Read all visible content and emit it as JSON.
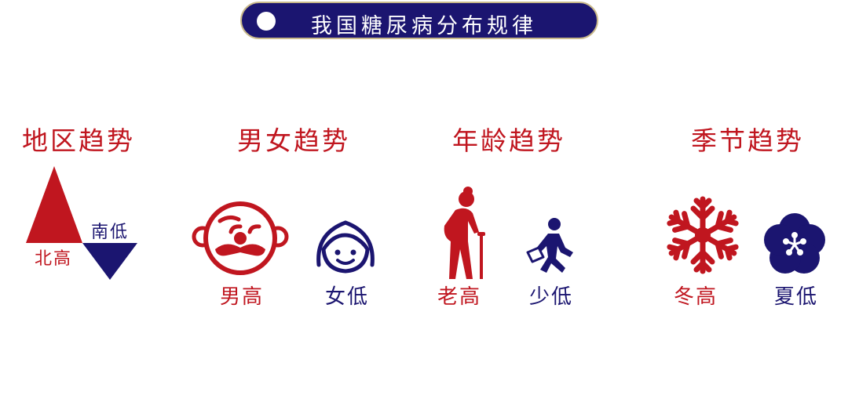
{
  "header": {
    "title": "我国糖尿病分布规律"
  },
  "sections": [
    {
      "title": "地区趋势",
      "high": "北高",
      "low": "南低"
    },
    {
      "title": "男女趋势",
      "high": "男高",
      "low": "女低"
    },
    {
      "title": "年龄趋势",
      "high": "老高",
      "low": "少低"
    },
    {
      "title": "季节趋势",
      "high": "冬高",
      "low": "夏低"
    }
  ],
  "colors": {
    "red": "#c0161f",
    "navy": "#1b1570",
    "border": "#c9b98a"
  },
  "icons": [
    "triangle-up-icon",
    "triangle-down-icon",
    "mustache-man-face-icon",
    "woman-face-icon",
    "elderly-person-cane-icon",
    "running-student-icon",
    "snowflake-icon",
    "flower-icon"
  ]
}
